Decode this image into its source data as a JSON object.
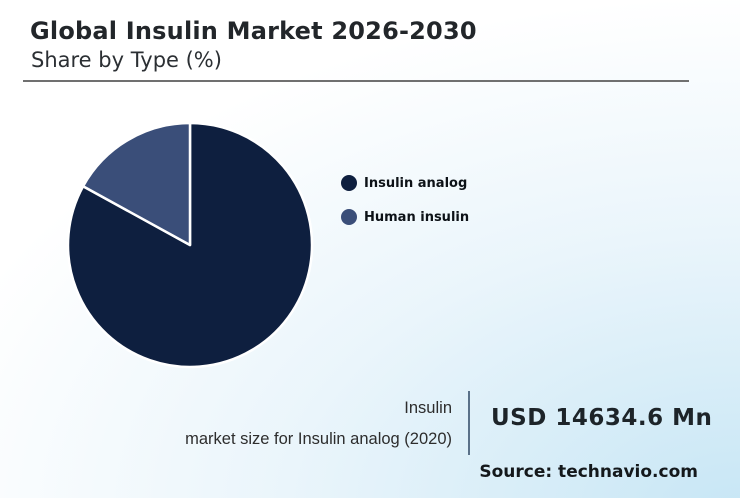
{
  "header": {
    "title": "Global Insulin Market 2026-2030",
    "subtitle": "Share by Type (%)"
  },
  "chart_data": {
    "type": "pie",
    "title": "Global Insulin Market 2026-2030",
    "subtitle": "Share by Type (%)",
    "slices": [
      {
        "label": "Insulin analog",
        "value": 83,
        "color": "#0e1f3f"
      },
      {
        "label": "Human insulin",
        "value": 17,
        "color": "#3a4e79"
      }
    ],
    "values_are_estimated_percent": true,
    "start_angle_deg": 0,
    "direction": "clockwise",
    "separator_color": "#ffffff",
    "legend_position": "right",
    "data_labels_shown": false
  },
  "stat": {
    "label_line1": "Insulin",
    "label_line2": "market size for Insulin analog (2020)",
    "value": "USD 14634.6 Mn"
  },
  "source_text": "Source: technavio.com",
  "colors": {
    "bg-start": "#ffffff",
    "bg-mid": "#eaf5fb",
    "bg-end": "#c7e6f5",
    "title-text": "#22262a",
    "subtitle-text": "#2b2f33",
    "underline": "#707070",
    "legend-text": "#0d1217",
    "stat-label-text": "#2d2d2d",
    "stat-text": "#1d2429",
    "divider": "#5a7189",
    "source-text": "#14181b"
  }
}
